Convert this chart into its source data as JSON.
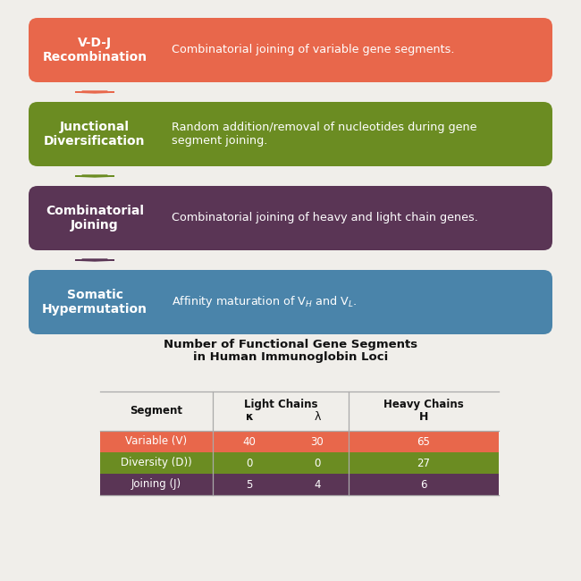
{
  "bg_color": "#f0eeea",
  "boxes": [
    {
      "label": "V-D-J\nRecombination",
      "description": "Combinatorial joining of variable gene segments.",
      "box_color": "#e8674b",
      "text_color": "#ffffff",
      "desc_color": "#ffffff",
      "arrow_color": "#e8674b"
    },
    {
      "label": "Junctional\nDiversification",
      "description": "Random addition/removal of nucleotides during gene\nsegment joining.",
      "box_color": "#6b8c22",
      "text_color": "#ffffff",
      "desc_color": "#ffffff",
      "arrow_color": "#6b8c22"
    },
    {
      "label": "Combinatorial\nJoining",
      "description": "Combinatorial joining of heavy and light chain genes.",
      "box_color": "#5a3555",
      "text_color": "#ffffff",
      "desc_color": "#ffffff",
      "arrow_color": "#5a3555"
    },
    {
      "label": "Somatic\nHypermutation",
      "description_parts": [
        "Affinity maturation of V",
        "H",
        " and V",
        "L",
        "."
      ],
      "box_color": "#4a84aa",
      "text_color": "#ffffff",
      "desc_color": "#ffffff",
      "arrow_color": "#4a84aa"
    }
  ],
  "table_title_line1": "Number of Functional Gene Segments",
  "table_title_line2": "in Human Immunoglobin Loci",
  "table_col1": [
    "Variable (V)",
    "Diversity (D))",
    "Joining (J)"
  ],
  "table_kappa": [
    "40",
    "0",
    "5"
  ],
  "table_lambda": [
    "30",
    "0",
    "4"
  ],
  "table_heavy": [
    "65",
    "27",
    "6"
  ],
  "table_row_colors": [
    "#e8674b",
    "#6b8c22",
    "#5a3555"
  ],
  "table_text_color": "#ffffff",
  "fig_width": 6.5,
  "fig_height": 6.5,
  "dpi": 100
}
